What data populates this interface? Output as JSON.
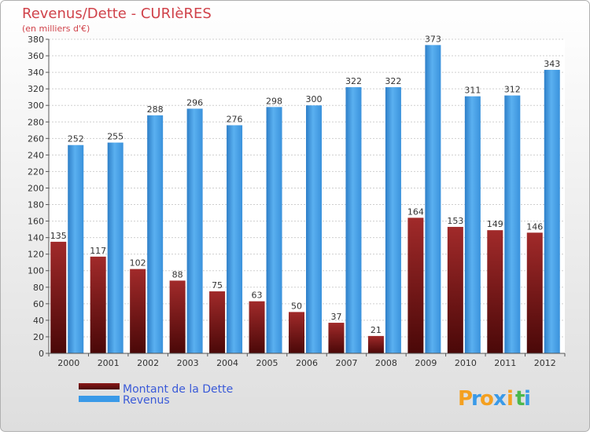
{
  "chart_data": {
    "type": "bar",
    "title": "Revenus/Dette - CURIèRES",
    "subtitle": "(en milliers d'€)",
    "categories": [
      "2000",
      "2001",
      "2002",
      "2003",
      "2004",
      "2005",
      "2006",
      "2007",
      "2008",
      "2009",
      "2010",
      "2011",
      "2012"
    ],
    "series": [
      {
        "name": "Montant de la Dette",
        "values": [
          135,
          117,
          102,
          88,
          75,
          63,
          50,
          37,
          21,
          164,
          153,
          149,
          146
        ],
        "color": "#8B1A1A"
      },
      {
        "name": "Revenus",
        "values": [
          252,
          255,
          288,
          296,
          276,
          298,
          300,
          322,
          322,
          373,
          311,
          312,
          343
        ],
        "color": "#3A9AE8"
      }
    ],
    "ylim": [
      0,
      380
    ],
    "ytick_step": 20,
    "grid": true,
    "legend_position": "bottom-left",
    "title_color": "#D0424A",
    "legend_text_color": "#3A5AD8",
    "background_color": "#E8E8E8"
  },
  "branding": {
    "logo_letters": [
      "P",
      "r",
      "o",
      "x",
      "i",
      "t",
      "i"
    ],
    "logo_colors": [
      "#F4A020",
      "#3A9AE8",
      "#F4A020",
      "#3A9AE8",
      "#F4A020",
      "#4CB84C",
      "#3A9AE8"
    ]
  }
}
